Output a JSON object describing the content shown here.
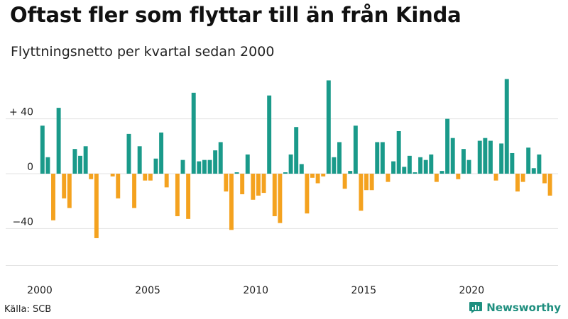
{
  "title": "Oftast fler som flyttar till än från Kinda",
  "subtitle": "Flyttningsnetto per kvartal sedan 2000",
  "source": "Källa: SCB",
  "brand": "Newsworthy",
  "colors": {
    "positive": "#1a9a8a",
    "negative": "#f4a21f",
    "grid": "#e3e3e3",
    "brand": "#1f8f7f"
  },
  "chart_data": {
    "type": "bar",
    "xlabel": "",
    "ylabel": "",
    "ylim": [
      -70,
      70
    ],
    "y_ticks": [
      {
        "value": 40,
        "label": "+ 40"
      },
      {
        "value": 0,
        "label": "0"
      },
      {
        "value": -40,
        "label": "−40"
      }
    ],
    "x_ticks": [
      "2000",
      "2005",
      "2010",
      "2015",
      "2020"
    ],
    "grid": true,
    "start": "2000 Q1",
    "categories": [
      "2000Q1",
      "2000Q2",
      "2000Q3",
      "2000Q4",
      "2001Q1",
      "2001Q2",
      "2001Q3",
      "2001Q4",
      "2002Q1",
      "2002Q2",
      "2002Q3",
      "2002Q4",
      "2003Q1",
      "2003Q2",
      "2003Q3",
      "2003Q4",
      "2004Q1",
      "2004Q2",
      "2004Q3",
      "2004Q4",
      "2005Q1",
      "2005Q2",
      "2005Q3",
      "2005Q4",
      "2006Q1",
      "2006Q2",
      "2006Q3",
      "2006Q4",
      "2007Q1",
      "2007Q2",
      "2007Q3",
      "2007Q4",
      "2008Q1",
      "2008Q2",
      "2008Q3",
      "2008Q4",
      "2009Q1",
      "2009Q2",
      "2009Q3",
      "2009Q4",
      "2010Q1",
      "2010Q2",
      "2010Q3",
      "2010Q4",
      "2011Q1",
      "2011Q2",
      "2011Q3",
      "2011Q4",
      "2012Q1",
      "2012Q2",
      "2012Q3",
      "2012Q4",
      "2013Q1",
      "2013Q2",
      "2013Q3",
      "2013Q4",
      "2014Q1",
      "2014Q2",
      "2014Q3",
      "2014Q4",
      "2015Q1",
      "2015Q2",
      "2015Q3",
      "2015Q4",
      "2016Q1",
      "2016Q2",
      "2016Q3",
      "2016Q4",
      "2017Q1",
      "2017Q2",
      "2017Q3",
      "2017Q4",
      "2018Q1",
      "2018Q2",
      "2018Q3",
      "2018Q4",
      "2019Q1",
      "2019Q2",
      "2019Q3",
      "2019Q4",
      "2020Q1",
      "2020Q2",
      "2020Q3",
      "2020Q4",
      "2021Q1",
      "2021Q2",
      "2021Q3",
      "2021Q4",
      "2022Q1",
      "2022Q2",
      "2022Q3",
      "2022Q4",
      "2023Q1",
      "2023Q2",
      "2023Q3",
      "2023Q4"
    ],
    "values": [
      35,
      12,
      -34,
      48,
      -18,
      -25,
      18,
      13,
      20,
      -4,
      -47,
      0,
      0,
      -2,
      -18,
      0,
      29,
      -25,
      20,
      -5,
      -5,
      11,
      30,
      -10,
      0,
      -31,
      10,
      -33,
      59,
      9,
      10,
      10,
      17,
      23,
      -13,
      -41,
      1,
      -15,
      14,
      -19,
      -16,
      -14,
      57,
      -31,
      -36,
      1,
      14,
      34,
      7,
      -29,
      -3,
      -7,
      -2,
      68,
      12,
      23,
      -11,
      2,
      35,
      -27,
      -12,
      -12,
      23,
      23,
      -6,
      9,
      31,
      5,
      13,
      1,
      12,
      10,
      14,
      -6,
      2,
      40,
      26,
      -4,
      18,
      10,
      0,
      24,
      26,
      24,
      -5,
      22,
      69,
      15,
      -13,
      -6,
      19,
      4,
      14,
      -7,
      -16,
      0
    ]
  }
}
